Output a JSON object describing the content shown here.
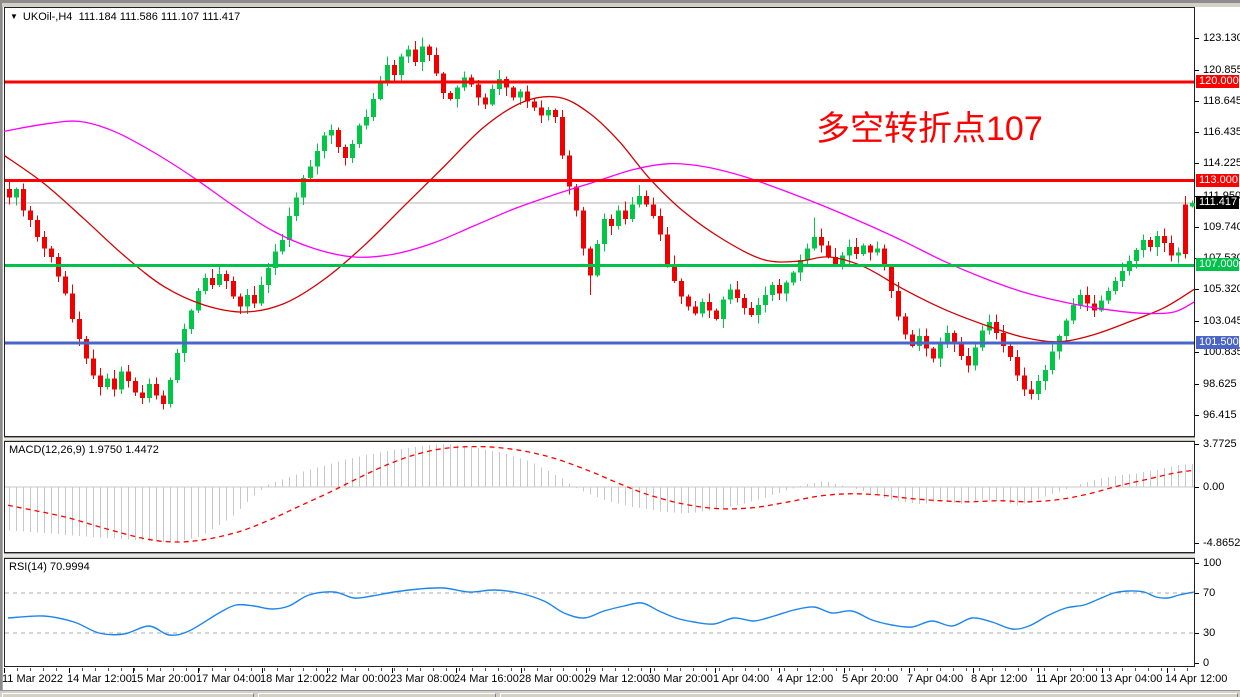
{
  "header": {
    "symbol": "UKOil-,H4",
    "ohlc": "111.184 111.586 111.107 111.417",
    "dropdown_arrow": "▼"
  },
  "annotation": {
    "text": "多空转折点107",
    "color": "#fe0000"
  },
  "colors": {
    "up": "#00c846",
    "down": "#f20000",
    "level_red": "#ff0000",
    "level_green": "#00c24a",
    "level_blue": "#4a64c8",
    "ma_fast": "#d40000",
    "ma_slow": "#ff00ff",
    "macd_hist": "#c8c8c8",
    "macd_signal": "#ff0000",
    "rsi_line": "#1c86ee",
    "dash_level": "#bdbdbd",
    "current_price_line": "#b5b5b5",
    "badge_current_bg": "#000000",
    "panel_border": "#222222"
  },
  "price_axis": {
    "ticks": [
      "123.130",
      "120.855",
      "118.645",
      "116.435",
      "114.225",
      "111.950",
      "109.740",
      "107.530",
      "105.320",
      "103.045",
      "100.835",
      "98.625",
      "96.415"
    ],
    "tick_values": [
      123.13,
      120.855,
      118.645,
      116.435,
      114.225,
      111.95,
      109.74,
      107.53,
      105.32,
      103.045,
      100.835,
      98.625,
      96.415
    ],
    "badges": [
      {
        "label": "120.000",
        "value": 120.0,
        "bg": "#ff0000"
      },
      {
        "label": "113.000",
        "value": 113.0,
        "bg": "#ff0000"
      },
      {
        "label": "111.417",
        "value": 111.417,
        "bg": "#000000"
      },
      {
        "label": "107.000",
        "value": 107.0,
        "bg": "#00c24a"
      },
      {
        "label": "101.500",
        "value": 101.5,
        "bg": "#4a64c8"
      }
    ]
  },
  "time_axis": {
    "labels": [
      "11 Mar 2022",
      "14 Mar 12:00",
      "15 Mar 20:00",
      "17 Mar 04:00",
      "18 Mar 12:00",
      "22 Mar 00:00",
      "23 Mar 08:00",
      "24 Mar 16:00",
      "28 Mar 00:00",
      "29 Mar 12:00",
      "30 Mar 20:00",
      "1 Apr 04:00",
      "4 Apr 12:00",
      "5 Apr 20:00",
      "7 Apr 04:00",
      "8 Apr 12:00",
      "11 Apr 20:00",
      "13 Apr 04:00",
      "14 Apr 12:00"
    ]
  },
  "chart_data": {
    "price_panel": {
      "type": "candlestick",
      "symbol": "UKOil-",
      "timeframe": "H4",
      "last_bar": {
        "open": 111.184,
        "high": 111.586,
        "low": 111.107,
        "close": 111.417
      },
      "y_ticks": [
        123.13,
        120.855,
        118.645,
        116.435,
        114.225,
        111.95,
        109.74,
        107.53,
        105.32,
        103.045,
        100.835,
        98.625,
        96.415
      ],
      "y_range": [
        94.85,
        125.3
      ],
      "closes": [
        111.8,
        112.4,
        110.9,
        110.2,
        109.0,
        108.2,
        107.6,
        106.2,
        105.0,
        103.2,
        101.8,
        100.4,
        99.2,
        98.4,
        99.0,
        98.2,
        99.5,
        98.8,
        98.0,
        97.6,
        98.6,
        97.8,
        97.2,
        98.9,
        100.8,
        102.5,
        103.8,
        105.2,
        106.1,
        105.6,
        106.4,
        105.9,
        104.8,
        104.1,
        104.9,
        104.3,
        105.6,
        106.8,
        108.0,
        108.8,
        110.5,
        111.8,
        113.2,
        114.0,
        115.1,
        116.2,
        116.6,
        115.4,
        114.6,
        115.6,
        116.9,
        117.5,
        118.8,
        120.1,
        121.2,
        120.5,
        121.8,
        122.3,
        121.4,
        122.5,
        121.9,
        120.6,
        119.2,
        118.8,
        119.6,
        120.3,
        119.8,
        118.9,
        118.4,
        119.5,
        120.2,
        119.6,
        118.9,
        119.3,
        118.6,
        118.2,
        117.6,
        118.0,
        117.5,
        114.8,
        112.6,
        110.9,
        108.2,
        106.3,
        108.5,
        110.3,
        109.8,
        110.9,
        110.3,
        111.3,
        111.9,
        111.3,
        110.5,
        109.2,
        107.1,
        105.9,
        104.8,
        104.1,
        103.6,
        104.4,
        103.8,
        103.2,
        104.6,
        105.3,
        104.7,
        104.0,
        103.5,
        104.2,
        104.9,
        105.6,
        105.0,
        105.8,
        106.5,
        107.4,
        108.2,
        109.0,
        108.4,
        107.6,
        107.0,
        107.7,
        108.3,
        107.8,
        108.4,
        107.9,
        108.2,
        106.9,
        105.2,
        103.4,
        102.1,
        101.3,
        102.0,
        101.1,
        100.4,
        101.5,
        102.2,
        101.4,
        100.6,
        99.9,
        101.2,
        102.4,
        103.0,
        102.2,
        101.3,
        100.5,
        99.2,
        98.2,
        97.9,
        98.8,
        99.6,
        100.9,
        102.0,
        103.1,
        104.2,
        104.9,
        104.3,
        103.8,
        104.5,
        105.2,
        105.9,
        106.6,
        107.3,
        108.1,
        108.8,
        108.3,
        109.1,
        108.6,
        107.7,
        107.9,
        107.8,
        111.417
      ],
      "open_overrides": {
        "0": 112.4,
        "168": 111.3,
        "169": 111.184
      },
      "wick_overrides": {
        "22": {
          "l": 96.8
        },
        "58": {
          "h": 122.9
        },
        "59": {
          "h": 123.13
        },
        "70": {
          "h": 120.85
        },
        "83": {
          "l": 104.9
        },
        "90": {
          "h": 112.7
        },
        "115": {
          "h": 110.4
        },
        "146": {
          "l": 97.5
        },
        "168": {
          "h": 111.9,
          "l": 107.5
        },
        "169": {
          "h": 111.586,
          "l": 111.107
        }
      },
      "h_levels": [
        {
          "value": 120.0,
          "color": "#ff0000",
          "width": 3
        },
        {
          "value": 113.0,
          "color": "#ff0000",
          "width": 3
        },
        {
          "value": 107.0,
          "color": "#00c24a",
          "width": 3
        },
        {
          "value": 101.5,
          "color": "#4a64c8",
          "width": 3
        }
      ],
      "current_price": 111.417,
      "ma_fast_red": [
        [
          0,
          114.8
        ],
        [
          40,
          112.8
        ],
        [
          80,
          110.3
        ],
        [
          120,
          107.7
        ],
        [
          160,
          105.5
        ],
        [
          200,
          104.2
        ],
        [
          240,
          103.7
        ],
        [
          280,
          104.3
        ],
        [
          320,
          106.0
        ],
        [
          360,
          108.4
        ],
        [
          400,
          111.2
        ],
        [
          440,
          114.0
        ],
        [
          480,
          116.8
        ],
        [
          520,
          118.6
        ],
        [
          555,
          118.9
        ],
        [
          585,
          117.8
        ],
        [
          615,
          115.8
        ],
        [
          645,
          113.2
        ],
        [
          680,
          110.8
        ],
        [
          720,
          108.8
        ],
        [
          760,
          107.4
        ],
        [
          795,
          107.3
        ],
        [
          825,
          107.6
        ],
        [
          860,
          106.9
        ],
        [
          900,
          105.3
        ],
        [
          940,
          103.9
        ],
        [
          980,
          102.8
        ],
        [
          1020,
          101.9
        ],
        [
          1055,
          101.6
        ],
        [
          1090,
          102.1
        ],
        [
          1125,
          103.0
        ],
        [
          1160,
          104.0
        ],
        [
          1190,
          105.3
        ]
      ],
      "ma_slow_magenta": [
        [
          0,
          116.5
        ],
        [
          40,
          117.0
        ],
        [
          75,
          117.2
        ],
        [
          110,
          116.5
        ],
        [
          150,
          115.0
        ],
        [
          190,
          113.2
        ],
        [
          230,
          111.2
        ],
        [
          270,
          109.4
        ],
        [
          310,
          108.2
        ],
        [
          350,
          107.6
        ],
        [
          390,
          107.8
        ],
        [
          430,
          108.6
        ],
        [
          470,
          109.8
        ],
        [
          510,
          111.0
        ],
        [
          550,
          112.0
        ],
        [
          590,
          112.9
        ],
        [
          630,
          113.8
        ],
        [
          665,
          114.2
        ],
        [
          700,
          114.0
        ],
        [
          740,
          113.3
        ],
        [
          780,
          112.3
        ],
        [
          820,
          111.2
        ],
        [
          860,
          110.0
        ],
        [
          900,
          108.7
        ],
        [
          940,
          107.3
        ],
        [
          980,
          106.1
        ],
        [
          1020,
          105.1
        ],
        [
          1060,
          104.4
        ],
        [
          1100,
          103.9
        ],
        [
          1140,
          103.6
        ],
        [
          1170,
          103.7
        ],
        [
          1190,
          104.4
        ]
      ]
    },
    "macd_panel": {
      "type": "bar",
      "title": "MACD(12,26,9) 1.9750 1.4472",
      "macd_value": 1.975,
      "signal_value": 1.4472,
      "y_ticks": [
        "3.7725",
        "0.00",
        "-4.8652"
      ],
      "y_tick_values": [
        3.7725,
        0,
        -4.8652
      ],
      "y_range": [
        -5.76,
        4.0
      ],
      "histogram_waypoints": [
        [
          4,
          -3.8
        ],
        [
          50,
          -4.1
        ],
        [
          90,
          -4.4
        ],
        [
          130,
          -4.65
        ],
        [
          165,
          -4.86
        ],
        [
          195,
          -4.3
        ],
        [
          225,
          -2.7
        ],
        [
          248,
          -0.8
        ],
        [
          262,
          0.2
        ],
        [
          300,
          1.4
        ],
        [
          340,
          2.4
        ],
        [
          385,
          3.2
        ],
        [
          420,
          3.6
        ],
        [
          440,
          3.77
        ],
        [
          465,
          3.5
        ],
        [
          495,
          3.0
        ],
        [
          525,
          2.2
        ],
        [
          555,
          0.8
        ],
        [
          572,
          -0.2
        ],
        [
          600,
          -1.2
        ],
        [
          630,
          -1.8
        ],
        [
          660,
          -2.2
        ],
        [
          685,
          -2.3
        ],
        [
          715,
          -1.9
        ],
        [
          745,
          -1.3
        ],
        [
          775,
          -0.5
        ],
        [
          798,
          0.2
        ],
        [
          818,
          0.5
        ],
        [
          838,
          0.1
        ],
        [
          856,
          -0.3
        ],
        [
          876,
          -0.9
        ],
        [
          896,
          -1.3
        ],
        [
          916,
          -1.5
        ],
        [
          936,
          -1.2
        ],
        [
          956,
          -1.5
        ],
        [
          976,
          -1.1
        ],
        [
          996,
          -1.3
        ],
        [
          1014,
          -1.6
        ],
        [
          1034,
          -1.0
        ],
        [
          1054,
          -0.4
        ],
        [
          1072,
          0.2
        ],
        [
          1092,
          0.7
        ],
        [
          1112,
          1.0
        ],
        [
          1132,
          1.2
        ],
        [
          1152,
          1.5
        ],
        [
          1172,
          1.9
        ],
        [
          1188,
          2.0
        ]
      ],
      "signal_waypoints": [
        [
          4,
          -1.6
        ],
        [
          60,
          -2.6
        ],
        [
          100,
          -3.6
        ],
        [
          140,
          -4.5
        ],
        [
          170,
          -4.8
        ],
        [
          200,
          -4.6
        ],
        [
          235,
          -3.9
        ],
        [
          265,
          -2.9
        ],
        [
          295,
          -1.7
        ],
        [
          325,
          -0.5
        ],
        [
          355,
          0.8
        ],
        [
          385,
          2.0
        ],
        [
          415,
          2.9
        ],
        [
          445,
          3.4
        ],
        [
          480,
          3.5
        ],
        [
          515,
          3.2
        ],
        [
          550,
          2.5
        ],
        [
          585,
          1.4
        ],
        [
          615,
          0.3
        ],
        [
          645,
          -0.7
        ],
        [
          680,
          -1.5
        ],
        [
          715,
          -1.9
        ],
        [
          750,
          -1.8
        ],
        [
          785,
          -1.3
        ],
        [
          815,
          -0.8
        ],
        [
          845,
          -0.6
        ],
        [
          875,
          -0.7
        ],
        [
          905,
          -1.0
        ],
        [
          935,
          -1.2
        ],
        [
          965,
          -1.3
        ],
        [
          995,
          -1.2
        ],
        [
          1025,
          -1.3
        ],
        [
          1055,
          -1.1
        ],
        [
          1085,
          -0.6
        ],
        [
          1115,
          0.1
        ],
        [
          1145,
          0.7
        ],
        [
          1170,
          1.2
        ],
        [
          1190,
          1.45
        ]
      ]
    },
    "rsi_panel": {
      "type": "line",
      "title": "RSI(14) 70.9994",
      "rsi_value": 70.9994,
      "levels": [
        70,
        30
      ],
      "y_ticks": [
        "100",
        "70",
        "30",
        "0"
      ],
      "y_tick_values": [
        100,
        70,
        30,
        0
      ],
      "y_range": [
        -4,
        105
      ],
      "line_waypoints": [
        [
          4,
          45
        ],
        [
          40,
          47
        ],
        [
          70,
          41
        ],
        [
          95,
          30
        ],
        [
          120,
          29
        ],
        [
          145,
          37
        ],
        [
          165,
          28
        ],
        [
          185,
          32
        ],
        [
          215,
          50
        ],
        [
          232,
          58
        ],
        [
          250,
          57
        ],
        [
          268,
          54
        ],
        [
          285,
          57
        ],
        [
          305,
          68
        ],
        [
          330,
          71
        ],
        [
          350,
          65
        ],
        [
          368,
          67
        ],
        [
          390,
          71
        ],
        [
          415,
          74
        ],
        [
          440,
          75
        ],
        [
          465,
          71
        ],
        [
          490,
          73
        ],
        [
          515,
          70
        ],
        [
          540,
          62
        ],
        [
          560,
          50
        ],
        [
          580,
          45
        ],
        [
          600,
          52
        ],
        [
          620,
          57
        ],
        [
          638,
          60
        ],
        [
          655,
          52
        ],
        [
          672,
          45
        ],
        [
          690,
          41
        ],
        [
          710,
          39
        ],
        [
          730,
          45
        ],
        [
          750,
          42
        ],
        [
          770,
          47
        ],
        [
          790,
          53
        ],
        [
          810,
          56
        ],
        [
          828,
          50
        ],
        [
          848,
          52
        ],
        [
          868,
          43
        ],
        [
          888,
          38
        ],
        [
          908,
          36
        ],
        [
          928,
          42
        ],
        [
          948,
          37
        ],
        [
          968,
          45
        ],
        [
          988,
          41
        ],
        [
          1008,
          34
        ],
        [
          1025,
          37
        ],
        [
          1045,
          48
        ],
        [
          1062,
          55
        ],
        [
          1080,
          58
        ],
        [
          1095,
          64
        ],
        [
          1110,
          70
        ],
        [
          1125,
          72
        ],
        [
          1140,
          71
        ],
        [
          1152,
          66
        ],
        [
          1164,
          65
        ],
        [
          1175,
          68
        ],
        [
          1190,
          71
        ]
      ]
    }
  }
}
